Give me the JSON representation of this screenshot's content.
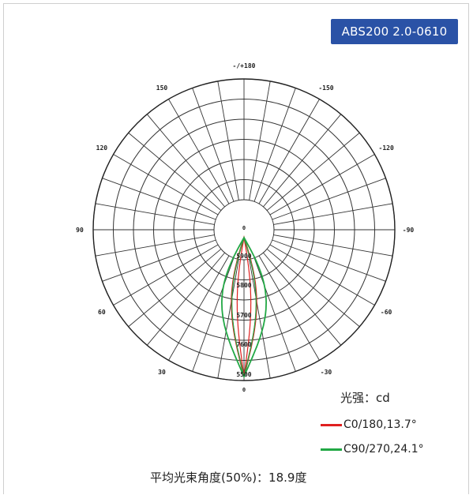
{
  "badge": {
    "text": "ABS200 2.0-0610"
  },
  "chart_data": {
    "type": "polar",
    "angle_labels": [
      "-/+180",
      "-150",
      "150",
      "-120",
      "120",
      "-90",
      "90",
      "-60",
      "60",
      "-30",
      "30",
      "0"
    ],
    "radial_labels": [
      "5900",
      "5800",
      "5700",
      "7600",
      "5500"
    ],
    "center_label": "0",
    "bottom_label": "0",
    "unit_label": "光强：cd",
    "series": [
      {
        "name": "C0/180,13.7°",
        "color": "#e02020",
        "beam_angle_deg": 13.7
      },
      {
        "name": "C90/270,24.1°",
        "color": "#22a845",
        "beam_angle_deg": 24.1
      }
    ],
    "average_beam": "平均光束角度(50%)：18.9度"
  }
}
